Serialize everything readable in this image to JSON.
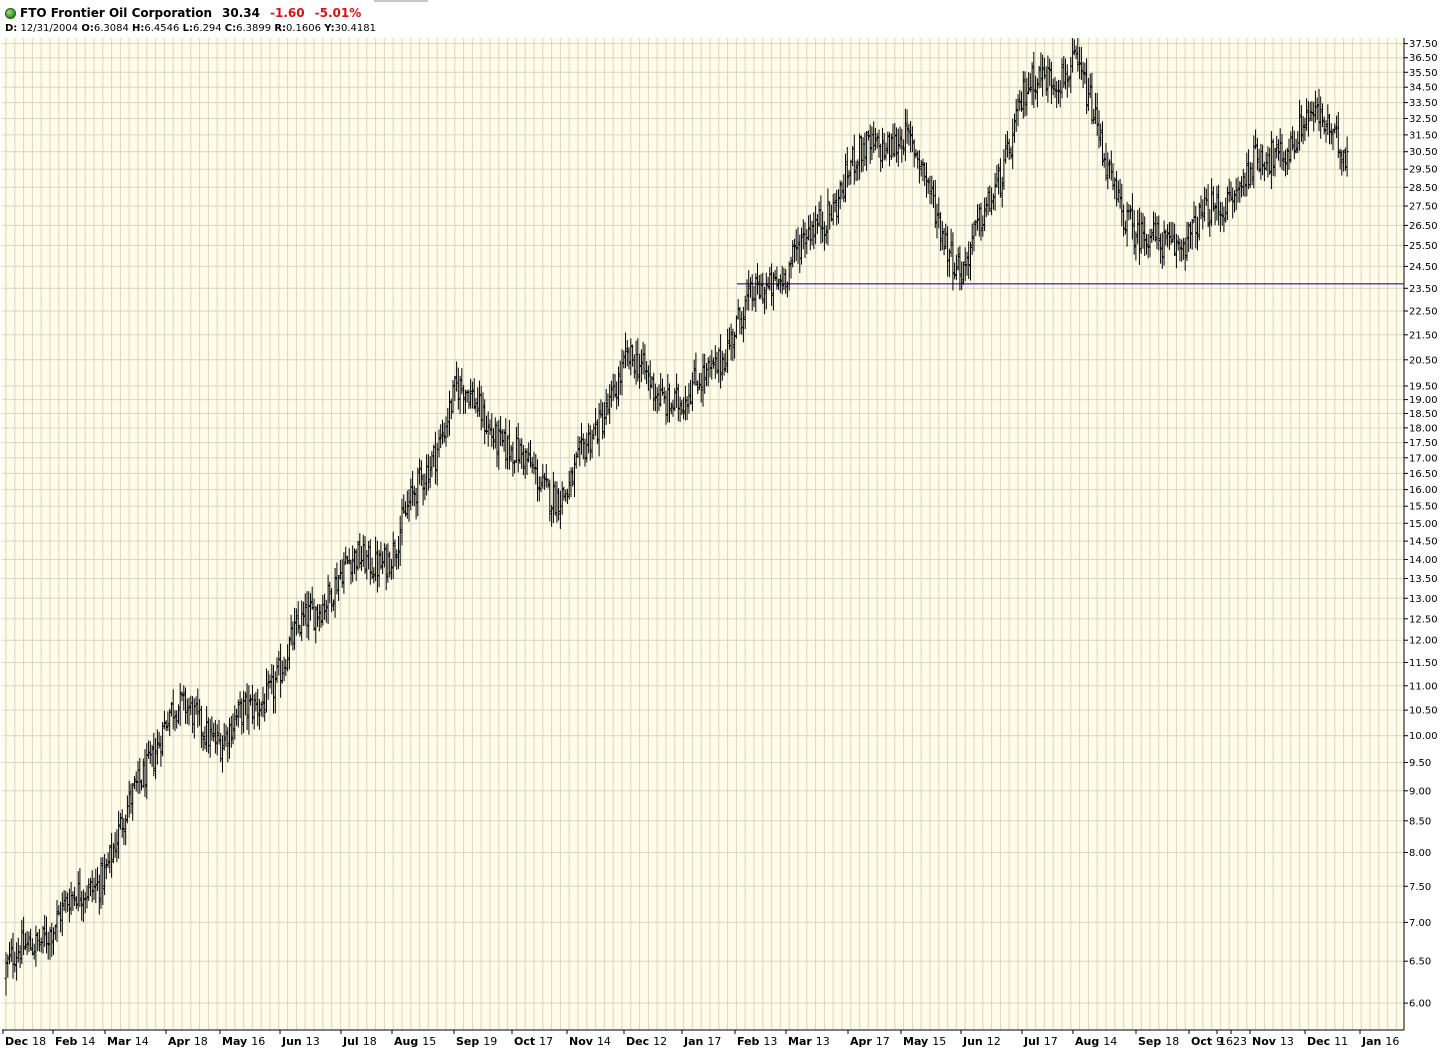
{
  "header": {
    "ticker_name": "FTO Frontier Oil Corporation",
    "last_price": "30.34",
    "change": "-1.60",
    "pct_change": "-5.01%",
    "ohlc": {
      "date_label": "D:",
      "date": "12/31/2004",
      "open_label": "O:",
      "open": "6.3084",
      "high_label": "H:",
      "high": "6.4546",
      "low_label": "L:",
      "low": "6.294",
      "close_label": "C:",
      "close": "6.3899",
      "range_label": "R:",
      "range": "0.1606",
      "y_label": "Y:",
      "y": "30.4181"
    }
  },
  "colors": {
    "plot_background": "#fffcea",
    "grid": "#d6d6c4",
    "bars": "#000000",
    "support_line": "#5a2bc8",
    "positive_status": "#2f8f1f",
    "negative": "#e01010"
  },
  "chart_data": {
    "type": "bar",
    "subtype": "ohlc",
    "y_scale": "log",
    "ylim": [
      5.7,
      37.9
    ],
    "grid": true,
    "y_ticks": [
      "37.50",
      "36.50",
      "35.50",
      "34.50",
      "33.50",
      "32.50",
      "31.50",
      "30.50",
      "29.50",
      "28.50",
      "27.50",
      "26.50",
      "25.50",
      "24.50",
      "23.50",
      "22.50",
      "21.50",
      "20.50",
      "19.50",
      "19.00",
      "18.50",
      "18.00",
      "17.50",
      "17.00",
      "16.50",
      "16.00",
      "15.50",
      "15.00",
      "14.50",
      "14.00",
      "13.50",
      "13.00",
      "12.50",
      "12.00",
      "11.50",
      "11.00",
      "10.50",
      "10.00",
      "9.50",
      "9.00",
      "8.50",
      "8.00",
      "7.50",
      "7.00",
      "6.50",
      "6.00"
    ],
    "x_labels": [
      {
        "month": "Dec",
        "day": "18"
      },
      {
        "month": "Feb",
        "day": "14"
      },
      {
        "month": "Mar",
        "day": "14"
      },
      {
        "month": "Apr",
        "day": "18"
      },
      {
        "month": "May",
        "day": "16"
      },
      {
        "month": "Jun",
        "day": "13"
      },
      {
        "month": "Jul",
        "day": "18"
      },
      {
        "month": "Aug",
        "day": "15"
      },
      {
        "month": "Sep",
        "day": "19"
      },
      {
        "month": "Oct",
        "day": "17"
      },
      {
        "month": "Nov",
        "day": "14"
      },
      {
        "month": "Dec",
        "day": "12"
      },
      {
        "month": "Jan",
        "day": "17"
      },
      {
        "month": "Feb",
        "day": "13"
      },
      {
        "month": "Mar",
        "day": "13"
      },
      {
        "month": "Apr",
        "day": "17"
      },
      {
        "month": "May",
        "day": "15"
      },
      {
        "month": "Jun",
        "day": "12"
      },
      {
        "month": "Jul",
        "day": "17"
      },
      {
        "month": "Aug",
        "day": "14"
      },
      {
        "month": "Sep",
        "day": "18"
      },
      {
        "month": "Oct",
        "day": "9"
      },
      {
        "month": "",
        "day": "16"
      },
      {
        "month": "",
        "day": "23"
      },
      {
        "month": "Nov",
        "day": "13"
      },
      {
        "month": "Dec",
        "day": "11"
      },
      {
        "month": "Jan",
        "day": "16"
      }
    ],
    "support_line": {
      "value": 23.7,
      "from_label": "Feb 13"
    },
    "close_path": [
      [
        "Dec 18",
        6.3
      ],
      [
        "Feb 14",
        6.9
      ],
      [
        "Mar 14",
        8.0
      ],
      [
        "Apr 18",
        10.3
      ],
      [
        "May 16",
        10.0
      ],
      [
        "Jun 13",
        11.5
      ],
      [
        "Jul 18",
        13.5
      ],
      [
        "Aug 15",
        14.6
      ],
      [
        "Sep 19",
        19.0
      ],
      [
        "Oct 17",
        17.2
      ],
      [
        "Nov 14",
        16.0
      ],
      [
        "Dec 12",
        20.0
      ],
      [
        "Jan 17",
        19.2
      ],
      [
        "Feb 13",
        21.6
      ],
      [
        "Mar 13",
        24.4
      ],
      [
        "Apr 17",
        30.0
      ],
      [
        "May 15",
        31.0
      ],
      [
        "Jun 12",
        24.6
      ],
      [
        "Jul 17",
        33.5
      ],
      [
        "Aug 14",
        35.8
      ],
      [
        "Sep 18",
        26.0
      ],
      [
        "Oct 9",
        25.3
      ],
      [
        "Nov 13",
        30.0
      ],
      [
        "Dec 11",
        32.2
      ],
      [
        "last",
        30.34
      ]
    ]
  }
}
